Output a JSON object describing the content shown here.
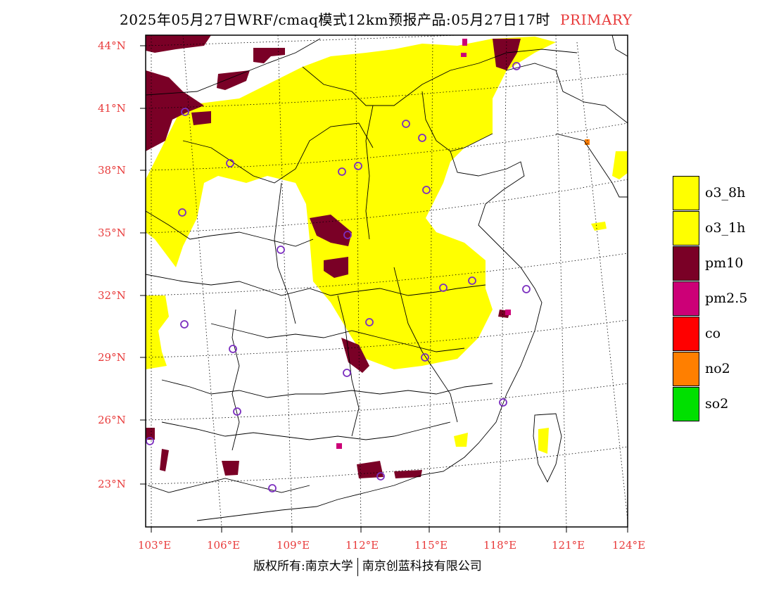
{
  "title": {
    "main": "2025年05月27日WRF/cmaq模式12km预报产品:05月27日17时",
    "tag": "PRIMARY"
  },
  "map": {
    "latitude_labels": [
      "44°N",
      "41°N",
      "38°N",
      "35°N",
      "32°N",
      "29°N",
      "26°N",
      "23°N"
    ],
    "longitude_labels": [
      "103°E",
      "106°E",
      "109°E",
      "112°E",
      "115°E",
      "118°E",
      "121°E",
      "124°E"
    ],
    "colors": {
      "o3": "#ffff00",
      "pm10": "#7a0026",
      "pm25": "#cc0077",
      "station_marker": "#7b2fbf",
      "label": "#e83a3a"
    }
  },
  "legend": {
    "items": [
      {
        "label": "o3_8h",
        "color": "#ffff00"
      },
      {
        "label": "o3_1h",
        "color": "#ffff00"
      },
      {
        "label": "pm10",
        "color": "#7a0026"
      },
      {
        "label": "pm2.5",
        "color": "#cc0077"
      },
      {
        "label": "co",
        "color": "#ff0000"
      },
      {
        "label": "no2",
        "color": "#ff7f00"
      },
      {
        "label": "so2",
        "color": "#00e000"
      }
    ]
  },
  "footer": {
    "left": "版权所有:南京大学",
    "right": "南京创蓝科技有限公司"
  }
}
